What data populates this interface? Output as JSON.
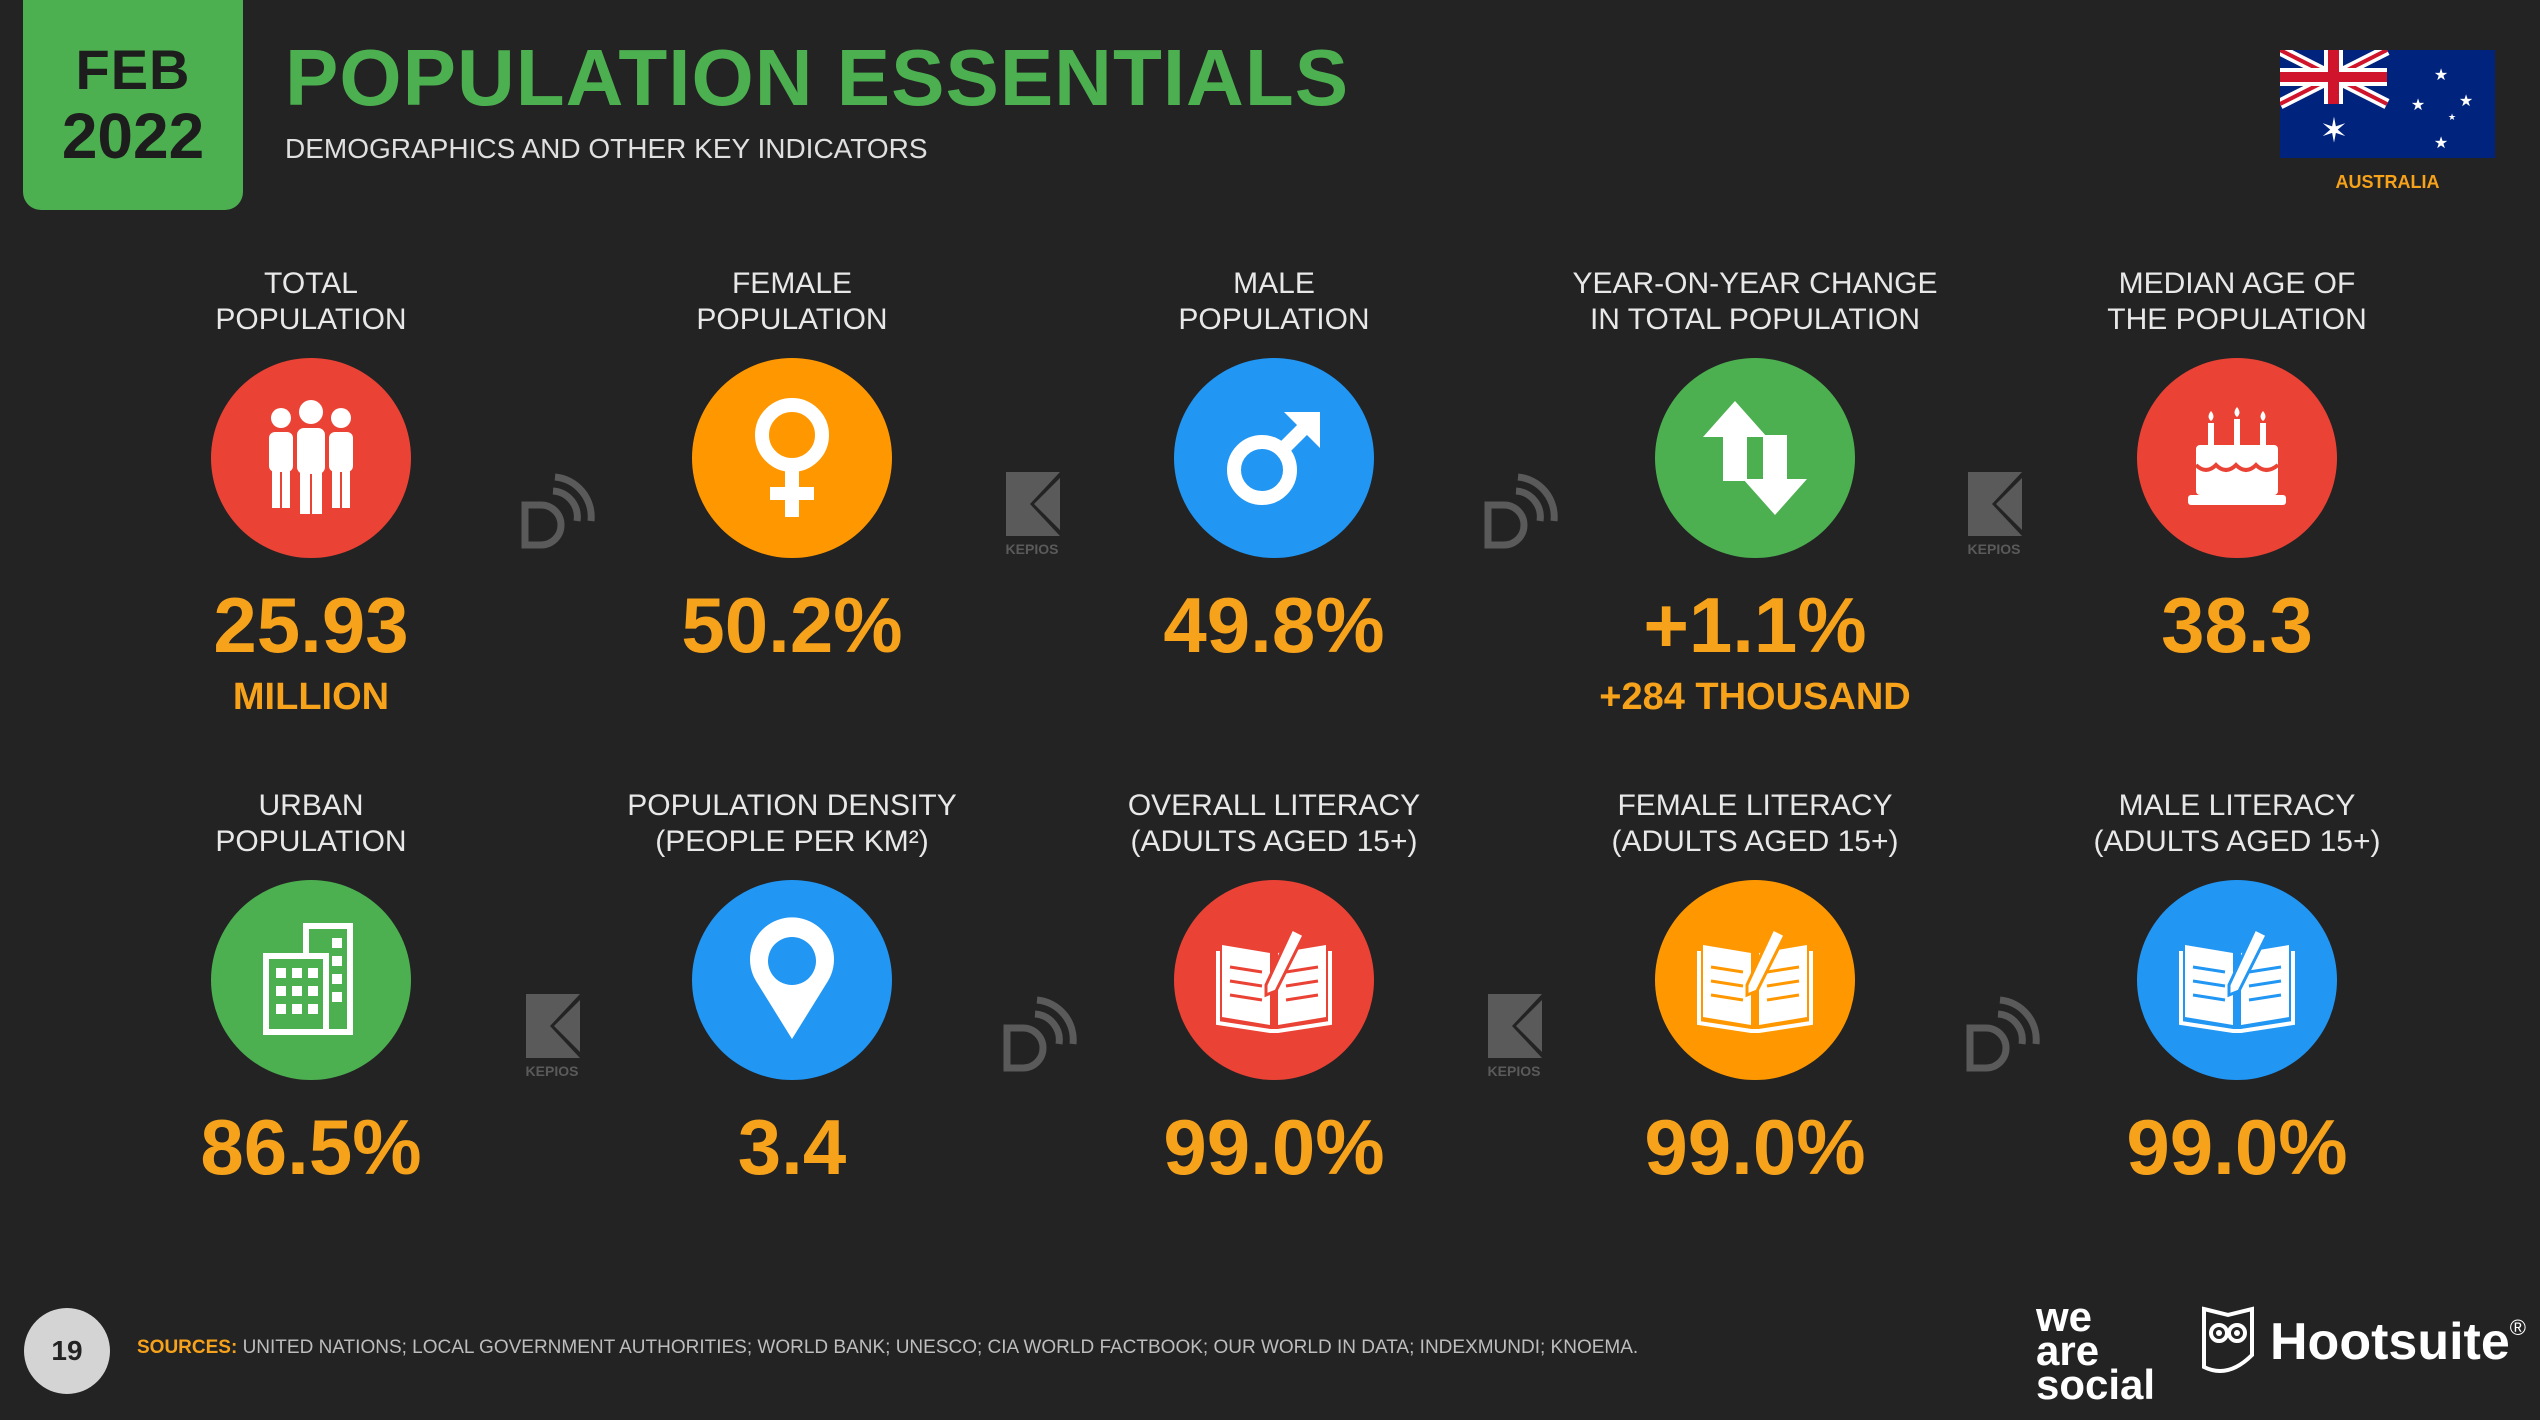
{
  "header": {
    "date_month": "FEB",
    "date_year": "2022",
    "title": "POPULATION ESSENTIALS",
    "subtitle": "DEMOGRAPHICS AND OTHER KEY INDICATORS",
    "country": "AUSTRALIA"
  },
  "colors": {
    "accent_green": "#4caf50",
    "value_orange": "#f7a21b",
    "red": "#ea4335",
    "orange": "#ff9800",
    "blue": "#2196f3",
    "background": "#232323"
  },
  "stats": [
    {
      "label": "TOTAL\nPOPULATION",
      "icon": "people-icon",
      "color": "red",
      "value": "25.93",
      "sub": "MILLION"
    },
    {
      "label": "FEMALE\nPOPULATION",
      "icon": "female-symbol-icon",
      "color": "orange",
      "value": "50.2%",
      "sub": ""
    },
    {
      "label": "MALE\nPOPULATION",
      "icon": "male-symbol-icon",
      "color": "blue",
      "value": "49.8%",
      "sub": ""
    },
    {
      "label": "YEAR-ON-YEAR CHANGE\nIN TOTAL POPULATION",
      "icon": "up-down-arrows-icon",
      "color": "green",
      "value": "+1.1%",
      "sub": "+284 THOUSAND"
    },
    {
      "label": "MEDIAN AGE OF\nTHE POPULATION",
      "icon": "birthday-cake-icon",
      "color": "red",
      "value": "38.3",
      "sub": ""
    },
    {
      "label": "URBAN\nPOPULATION",
      "icon": "buildings-icon",
      "color": "green",
      "value": "86.5%",
      "sub": ""
    },
    {
      "label": "POPULATION DENSITY\n(PEOPLE PER KM²)",
      "icon": "map-pin-icon",
      "color": "blue",
      "value": "3.4",
      "sub": ""
    },
    {
      "label": "OVERALL LITERACY\n(ADULTS AGED 15+)",
      "icon": "book-pen-icon",
      "color": "red",
      "value": "99.0%",
      "sub": ""
    },
    {
      "label": "FEMALE LITERACY\n(ADULTS AGED 15+)",
      "icon": "book-pen-icon",
      "color": "orange",
      "value": "99.0%",
      "sub": ""
    },
    {
      "label": "MALE LITERACY\n(ADULTS AGED 15+)",
      "icon": "book-pen-icon",
      "color": "blue",
      "value": "99.0%",
      "sub": ""
    }
  ],
  "separators": [
    "datareportal-logo-icon",
    "kepios-logo-icon",
    "datareportal-logo-icon",
    "kepios-logo-icon",
    "kepios-logo-icon",
    "datareportal-logo-icon",
    "kepios-logo-icon",
    "datareportal-logo-icon"
  ],
  "kepios_text": "KEPIOS",
  "footer": {
    "page_number": "19",
    "sources_label": "SOURCES:",
    "sources_text": "UNITED NATIONS; LOCAL GOVERNMENT AUTHORITIES; WORLD BANK; UNESCO; CIA WORLD FACTBOOK; OUR WORLD IN DATA; INDEXMUNDI; KNOEMA.",
    "brand1": [
      "we",
      "are",
      "social"
    ],
    "brand2": "Hootsuite",
    "brand2_mark": "®"
  }
}
